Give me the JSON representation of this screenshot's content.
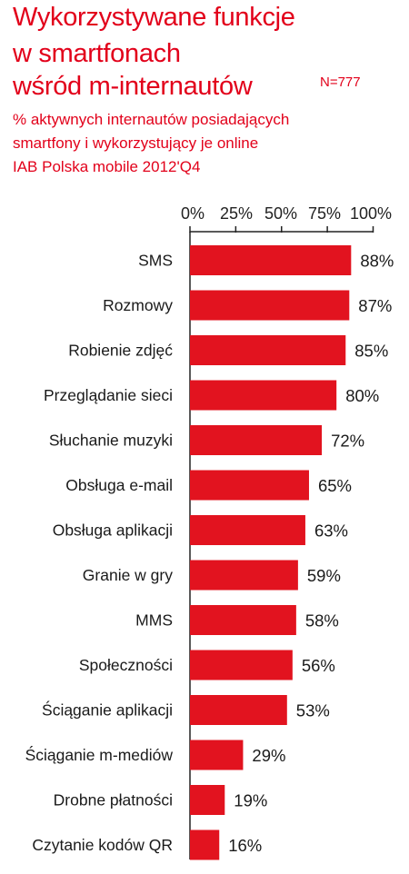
{
  "title_lines": [
    "Wykorzystywane funkcje",
    "w smartfonach",
    "wśród  m-internautów"
  ],
  "sample_note": "N=777",
  "subtitle_lines": [
    "% aktywnych internautów posiadających",
    "smartfony i wykorzystujący je online",
    "IAB Polska mobile 2012'Q4"
  ],
  "colors": {
    "accent": "#e2001a",
    "bar": "#e2131f",
    "axis": "#222222"
  },
  "chart_data": {
    "type": "bar",
    "orientation": "horizontal",
    "xlim": [
      0,
      100
    ],
    "ticks": [
      "0%",
      "25%",
      "50%",
      "75%",
      "100%"
    ],
    "tick_values": [
      0,
      25,
      50,
      75,
      100
    ],
    "categories": [
      "SMS",
      "Rozmowy",
      "Robienie zdjęć",
      "Przeglądanie sieci",
      "Słuchanie muzyki",
      "Obsługa e-mail",
      "Obsługa aplikacji",
      "Granie w gry",
      "MMS",
      "Społeczności",
      "Ściąganie aplikacji",
      "Ściąganie m-mediów",
      "Drobne płatności",
      "Czytanie kodów QR"
    ],
    "values": [
      88,
      87,
      85,
      80,
      72,
      65,
      63,
      59,
      58,
      56,
      53,
      29,
      19,
      16
    ],
    "value_labels": [
      "88%",
      "87%",
      "85%",
      "80%",
      "72%",
      "65%",
      "63%",
      "59%",
      "58%",
      "56%",
      "53%",
      "29%",
      "19%",
      "16%"
    ],
    "grid": false
  }
}
